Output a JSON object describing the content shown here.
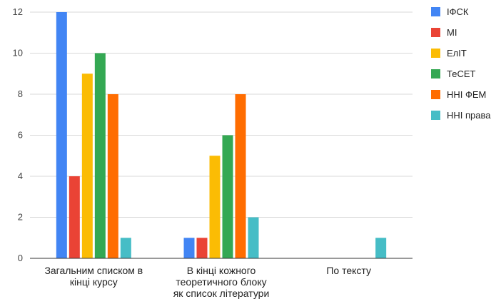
{
  "chart_data": {
    "type": "bar",
    "title": "",
    "xlabel": "",
    "ylabel": "",
    "ylim": [
      0,
      12
    ],
    "yticks": [
      0,
      2,
      4,
      6,
      8,
      10,
      12
    ],
    "grid": true,
    "legend_position": "right",
    "categories": [
      [
        "Загальним списком в",
        "кінці курсу"
      ],
      [
        "В кінці кожного",
        "теоретичного блоку",
        "як список літератури"
      ],
      [
        "По тексту"
      ]
    ],
    "series": [
      {
        "name": "ІФСК",
        "color": "#4285F4",
        "values": [
          12,
          1,
          0
        ]
      },
      {
        "name": "МІ",
        "color": "#EA4335",
        "values": [
          4,
          1,
          0
        ]
      },
      {
        "name": "ЕлІТ",
        "color": "#FBBC04",
        "values": [
          9,
          5,
          0
        ]
      },
      {
        "name": "ТеСЕТ",
        "color": "#34A853",
        "values": [
          10,
          6,
          0
        ]
      },
      {
        "name": "ННІ ФЕМ",
        "color": "#FF6D01",
        "values": [
          8,
          8,
          0
        ]
      },
      {
        "name": "ННІ права",
        "color": "#46BDC6",
        "values": [
          1,
          2,
          1
        ]
      }
    ]
  }
}
